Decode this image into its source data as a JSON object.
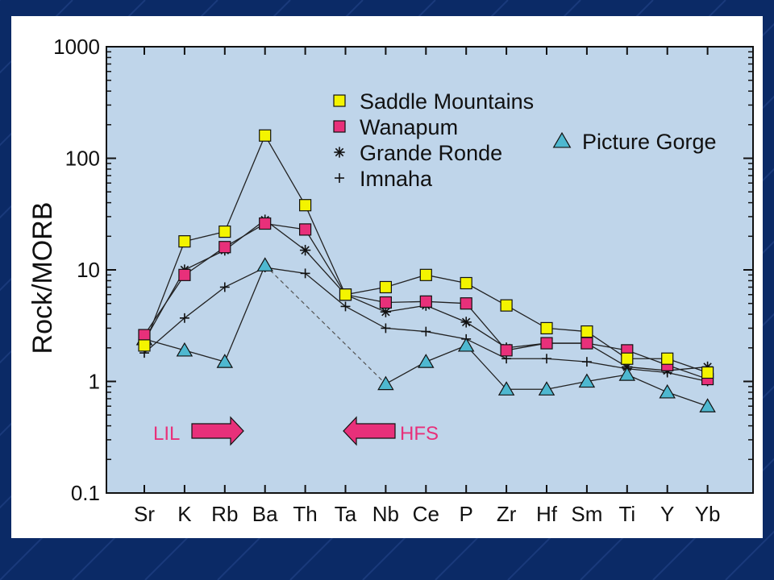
{
  "slide": {
    "background": "#0b2a66",
    "plot_background": "#bfd5ea",
    "colors": {
      "saddle": "#f4f400",
      "wanapum": "#e8307a",
      "picture_gorge": "#4eb8d0",
      "arrow": "#e8307a"
    }
  },
  "chart_data": {
    "type": "line",
    "title": "",
    "xlabel": "",
    "ylabel": "Rock/MORB",
    "yscale": "log",
    "ylim": [
      0.1,
      1000
    ],
    "yticks": [
      {
        "value": 0.1,
        "label": "0.1"
      },
      {
        "value": 1,
        "label": "1"
      },
      {
        "value": 10,
        "label": "10"
      },
      {
        "value": 100,
        "label": "100"
      },
      {
        "value": 1000,
        "label": "1000"
      }
    ],
    "categories": [
      "Sr",
      "K",
      "Rb",
      "Ba",
      "Th",
      "Ta",
      "Nb",
      "Ce",
      "P",
      "Zr",
      "Hf",
      "Sm",
      "Ti",
      "Y",
      "Yb"
    ],
    "grid": false,
    "legend_position": "top-right",
    "series": [
      {
        "name": "Saddle Mountains",
        "marker": "square",
        "color": "#f4f400",
        "values": [
          2.1,
          18,
          22,
          160,
          38,
          6,
          7,
          9,
          7.6,
          4.8,
          3,
          2.8,
          1.6,
          1.6,
          1.2
        ]
      },
      {
        "name": "Wanapum",
        "marker": "square",
        "color": "#e8307a",
        "values": [
          2.6,
          9,
          16,
          26,
          23,
          6,
          5.1,
          5.2,
          5,
          1.9,
          2.2,
          2.2,
          1.9,
          1.4,
          1.05
        ]
      },
      {
        "name": "Grande Ronde",
        "marker": "star",
        "color": "#111111",
        "values": [
          2.3,
          10,
          15,
          28,
          15,
          6,
          4.2,
          4.8,
          3.4,
          2,
          2.2,
          2.2,
          1.35,
          1.25,
          1.35
        ]
      },
      {
        "name": "Imnaha",
        "marker": "plus",
        "color": "#111111",
        "values": [
          1.8,
          3.7,
          7,
          10.5,
          9.3,
          4.7,
          3,
          2.8,
          2.4,
          1.6,
          1.6,
          1.5,
          1.3,
          1.2,
          1
        ]
      },
      {
        "name": "Picture Gorge",
        "marker": "triangle",
        "color": "#4eb8d0",
        "values": [
          2.4,
          1.9,
          1.5,
          11,
          null,
          null,
          0.95,
          1.5,
          2.1,
          0.85,
          0.85,
          1,
          1.15,
          0.8,
          0.6
        ],
        "dashed_link": [
          "Ba",
          "Nb"
        ]
      }
    ],
    "annotations": [
      {
        "text": "LIL",
        "arrow": "right"
      },
      {
        "text": "HFS",
        "arrow": "left"
      }
    ]
  }
}
